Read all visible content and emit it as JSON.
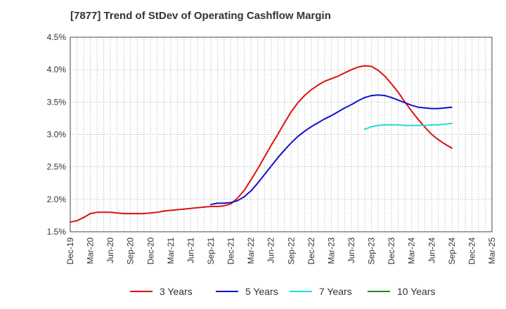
{
  "title": "[7877]  Trend of StDev of Operating Cashflow Margin",
  "chart_data": {
    "type": "line",
    "title": "[7877]  Trend of StDev of Operating Cashflow Margin",
    "xlabel": "",
    "ylabel": "",
    "ylim": [
      1.5,
      4.5
    ],
    "y_ticks": [
      "1.5%",
      "2.0%",
      "2.5%",
      "3.0%",
      "3.5%",
      "4.0%",
      "4.5%"
    ],
    "y_tick_values": [
      1.5,
      2.0,
      2.5,
      3.0,
      3.5,
      4.0,
      4.5
    ],
    "x_ticks": [
      "Dec-19",
      "Mar-20",
      "Jun-20",
      "Sep-20",
      "Dec-20",
      "Mar-21",
      "Jun-21",
      "Sep-21",
      "Dec-21",
      "Mar-22",
      "Jun-22",
      "Sep-22",
      "Dec-22",
      "Mar-23",
      "Jun-23",
      "Sep-23",
      "Dec-23",
      "Mar-24",
      "Jun-24",
      "Sep-24",
      "Dec-24",
      "Mar-25"
    ],
    "grid": true,
    "legend_position": "bottom",
    "series": [
      {
        "name": "3 Years",
        "color": "#dd1111",
        "points": [
          [
            "Dec-19",
            1.65
          ],
          [
            "Jan-20",
            1.67
          ],
          [
            "Feb-20",
            1.72
          ],
          [
            "Mar-20",
            1.78
          ],
          [
            "Apr-20",
            1.8
          ],
          [
            "May-20",
            1.8
          ],
          [
            "Jun-20",
            1.8
          ],
          [
            "Jul-20",
            1.79
          ],
          [
            "Aug-20",
            1.78
          ],
          [
            "Sep-20",
            1.78
          ],
          [
            "Oct-20",
            1.78
          ],
          [
            "Nov-20",
            1.78
          ],
          [
            "Dec-20",
            1.79
          ],
          [
            "Jan-21",
            1.8
          ],
          [
            "Feb-21",
            1.82
          ],
          [
            "Mar-21",
            1.83
          ],
          [
            "Apr-21",
            1.84
          ],
          [
            "May-21",
            1.85
          ],
          [
            "Jun-21",
            1.86
          ],
          [
            "Jul-21",
            1.87
          ],
          [
            "Aug-21",
            1.88
          ],
          [
            "Sep-21",
            1.89
          ],
          [
            "Oct-21",
            1.89
          ],
          [
            "Nov-21",
            1.9
          ],
          [
            "Dec-21",
            1.93
          ],
          [
            "Jan-22",
            2.02
          ],
          [
            "Feb-22",
            2.14
          ],
          [
            "Mar-22",
            2.3
          ],
          [
            "Apr-22",
            2.47
          ],
          [
            "May-22",
            2.65
          ],
          [
            "Jun-22",
            2.83
          ],
          [
            "Jul-22",
            3.0
          ],
          [
            "Aug-22",
            3.18
          ],
          [
            "Sep-22",
            3.35
          ],
          [
            "Oct-22",
            3.49
          ],
          [
            "Nov-22",
            3.6
          ],
          [
            "Dec-22",
            3.69
          ],
          [
            "Jan-23",
            3.76
          ],
          [
            "Feb-23",
            3.82
          ],
          [
            "Mar-23",
            3.86
          ],
          [
            "Apr-23",
            3.9
          ],
          [
            "May-23",
            3.95
          ],
          [
            "Jun-23",
            4.0
          ],
          [
            "Jul-23",
            4.04
          ],
          [
            "Aug-23",
            4.06
          ],
          [
            "Sep-23",
            4.05
          ],
          [
            "Oct-23",
            3.99
          ],
          [
            "Nov-23",
            3.9
          ],
          [
            "Dec-23",
            3.78
          ],
          [
            "Jan-24",
            3.65
          ],
          [
            "Feb-24",
            3.5
          ],
          [
            "Mar-24",
            3.36
          ],
          [
            "Apr-24",
            3.23
          ],
          [
            "May-24",
            3.11
          ],
          [
            "Jun-24",
            3.0
          ],
          [
            "Jul-24",
            2.92
          ],
          [
            "Aug-24",
            2.85
          ],
          [
            "Sep-24",
            2.79
          ]
        ]
      },
      {
        "name": "5 Years",
        "color": "#1111cc",
        "points": [
          [
            "Sep-21",
            1.92
          ],
          [
            "Oct-21",
            1.94
          ],
          [
            "Nov-21",
            1.94
          ],
          [
            "Dec-21",
            1.95
          ],
          [
            "Jan-22",
            1.98
          ],
          [
            "Feb-22",
            2.04
          ],
          [
            "Mar-22",
            2.13
          ],
          [
            "Apr-22",
            2.25
          ],
          [
            "May-22",
            2.38
          ],
          [
            "Jun-22",
            2.51
          ],
          [
            "Jul-22",
            2.64
          ],
          [
            "Aug-22",
            2.76
          ],
          [
            "Sep-22",
            2.87
          ],
          [
            "Oct-22",
            2.97
          ],
          [
            "Nov-22",
            3.05
          ],
          [
            "Dec-22",
            3.12
          ],
          [
            "Jan-23",
            3.18
          ],
          [
            "Feb-23",
            3.24
          ],
          [
            "Mar-23",
            3.29
          ],
          [
            "Apr-23",
            3.35
          ],
          [
            "May-23",
            3.41
          ],
          [
            "Jun-23",
            3.46
          ],
          [
            "Jul-23",
            3.52
          ],
          [
            "Aug-23",
            3.57
          ],
          [
            "Sep-23",
            3.6
          ],
          [
            "Oct-23",
            3.61
          ],
          [
            "Nov-23",
            3.6
          ],
          [
            "Dec-23",
            3.57
          ],
          [
            "Jan-24",
            3.53
          ],
          [
            "Feb-24",
            3.49
          ],
          [
            "Mar-24",
            3.45
          ],
          [
            "Apr-24",
            3.42
          ],
          [
            "May-24",
            3.41
          ],
          [
            "Jun-24",
            3.4
          ],
          [
            "Jul-24",
            3.4
          ],
          [
            "Aug-24",
            3.41
          ],
          [
            "Sep-24",
            3.42
          ]
        ]
      },
      {
        "name": "7 Years",
        "color": "#22dddd",
        "points": [
          [
            "Aug-23",
            3.08
          ],
          [
            "Sep-23",
            3.12
          ],
          [
            "Oct-23",
            3.14
          ],
          [
            "Nov-23",
            3.15
          ],
          [
            "Dec-23",
            3.15
          ],
          [
            "Jan-24",
            3.15
          ],
          [
            "Feb-24",
            3.14
          ],
          [
            "Mar-24",
            3.14
          ],
          [
            "Apr-24",
            3.14
          ],
          [
            "May-24",
            3.14
          ],
          [
            "Jun-24",
            3.15
          ],
          [
            "Jul-24",
            3.15
          ],
          [
            "Aug-24",
            3.16
          ],
          [
            "Sep-24",
            3.17
          ]
        ]
      },
      {
        "name": "10 Years",
        "color": "#228822",
        "points": []
      }
    ]
  }
}
